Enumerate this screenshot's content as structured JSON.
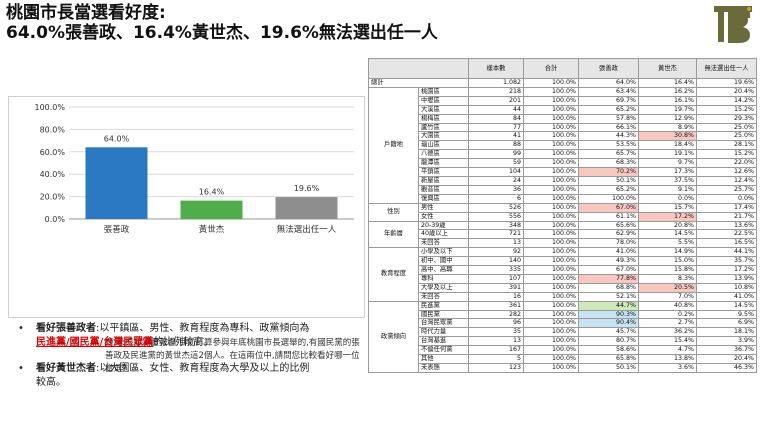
{
  "title": {
    "line1": "桃園市長當選看好度:",
    "line2": "64.0%張善政、16.4%黃世杰、19.6%無法選出任一人"
  },
  "logo": {
    "letters": "TBT",
    "color": "#6b6a3a",
    "accent": "#c9a227"
  },
  "chart_data": {
    "type": "bar",
    "categories": [
      "張善政",
      "黃世杰",
      "無法選出任一人"
    ],
    "values": [
      64.0,
      16.4,
      19.6
    ],
    "value_labels": [
      "64.0%",
      "16.4%",
      "19.6%"
    ],
    "colors": [
      "#2b78c2",
      "#4fae4a",
      "#8e8e8e"
    ],
    "ylim": [
      0,
      100
    ],
    "yticks": [
      "0.0%",
      "20.0%",
      "40.0%",
      "60.0%",
      "80.0%",
      "100.0%"
    ],
    "grid": true
  },
  "question": "題目:根據媒體報導,目前打算參與年底桃園市長選舉的,有國民黨的張善政及民進黨的黃世杰這2個人。在這兩位中,請問您比較看好哪一位當選?",
  "bullets": [
    {
      "lead": "看好張善政者",
      "text": ":以平鎮區、男性、教育程度為專科、政黨傾向為",
      "red": "民進黨/國民黨/台灣民眾黨",
      "tail": "的比例較高。"
    },
    {
      "lead": "看好黃世杰者",
      "text": ":以大園區、女性、教育程度為大學及以上的比例較高。",
      "red": "",
      "tail": ""
    }
  ],
  "table": {
    "headers": [
      "",
      "",
      "樣本數",
      "合計",
      "張善政",
      "黃世杰",
      "無法選出任一人"
    ],
    "total": {
      "label": "總計",
      "cells": [
        "1,082",
        "100.0%",
        "64.0%",
        "16.4%",
        "19.6%"
      ]
    },
    "groups": [
      {
        "name": "戶籍地",
        "rows": [
          {
            "label": "桃園區",
            "cells": [
              "218",
              "100.0%",
              "63.4%",
              "16.2%",
              "20.4%"
            ]
          },
          {
            "label": "中壢區",
            "cells": [
              "201",
              "100.0%",
              "69.7%",
              "16.1%",
              "14.2%"
            ]
          },
          {
            "label": "大溪區",
            "cells": [
              "44",
              "100.0%",
              "65.2%",
              "19.7%",
              "15.2%"
            ]
          },
          {
            "label": "楊梅區",
            "cells": [
              "84",
              "100.0%",
              "57.8%",
              "12.9%",
              "29.3%"
            ]
          },
          {
            "label": "蘆竹區",
            "cells": [
              "77",
              "100.0%",
              "66.1%",
              "8.9%",
              "25.0%"
            ]
          },
          {
            "label": "大園區",
            "cells": [
              "41",
              "100.0%",
              "44.3%",
              "30.8%",
              "25.0%"
            ],
            "hl": {
              "3": "red"
            }
          },
          {
            "label": "龜山區",
            "cells": [
              "88",
              "100.0%",
              "53.5%",
              "18.4%",
              "28.1%"
            ]
          },
          {
            "label": "八德區",
            "cells": [
              "99",
              "100.0%",
              "65.7%",
              "19.1%",
              "15.2%"
            ]
          },
          {
            "label": "龍潭區",
            "cells": [
              "59",
              "100.0%",
              "68.3%",
              "9.7%",
              "22.0%"
            ]
          },
          {
            "label": "平鎮區",
            "cells": [
              "104",
              "100.0%",
              "70.2%",
              "17.3%",
              "12.6%"
            ],
            "hl": {
              "2": "red"
            }
          },
          {
            "label": "新屋區",
            "cells": [
              "24",
              "100.0%",
              "50.1%",
              "37.5%",
              "12.4%"
            ]
          },
          {
            "label": "觀音區",
            "cells": [
              "36",
              "100.0%",
              "65.2%",
              "9.1%",
              "25.7%"
            ]
          },
          {
            "label": "復興區",
            "cells": [
              "6",
              "100.0%",
              "100.0%",
              "0.0%",
              "0.0%"
            ]
          }
        ]
      },
      {
        "name": "性別",
        "rows": [
          {
            "label": "男性",
            "cells": [
              "526",
              "100.0%",
              "67.0%",
              "15.7%",
              "17.4%"
            ],
            "hl": {
              "2": "red"
            }
          },
          {
            "label": "女性",
            "cells": [
              "556",
              "100.0%",
              "61.1%",
              "17.2%",
              "21.7%"
            ],
            "hl": {
              "3": "red"
            }
          }
        ]
      },
      {
        "name": "年齡層",
        "rows": [
          {
            "label": "20-39歲",
            "cells": [
              "348",
              "100.0%",
              "65.6%",
              "20.8%",
              "13.6%"
            ]
          },
          {
            "label": "40歲以上",
            "cells": [
              "721",
              "100.0%",
              "62.9%",
              "14.5%",
              "22.5%"
            ]
          },
          {
            "label": "未回答",
            "cells": [
              "13",
              "100.0%",
              "78.0%",
              "5.5%",
              "16.5%"
            ]
          }
        ]
      },
      {
        "name": "教育程度",
        "rows": [
          {
            "label": "小學及以下",
            "cells": [
              "92",
              "100.0%",
              "41.0%",
              "14.9%",
              "44.1%"
            ]
          },
          {
            "label": "初中、國中",
            "cells": [
              "140",
              "100.0%",
              "49.3%",
              "15.0%",
              "35.7%"
            ]
          },
          {
            "label": "高中、高職",
            "cells": [
              "335",
              "100.0%",
              "67.0%",
              "15.8%",
              "17.2%"
            ]
          },
          {
            "label": "專科",
            "cells": [
              "107",
              "100.0%",
              "77.8%",
              "8.3%",
              "13.9%"
            ],
            "hl": {
              "2": "red"
            }
          },
          {
            "label": "大學及以上",
            "cells": [
              "391",
              "100.0%",
              "68.8%",
              "20.5%",
              "10.8%"
            ],
            "hl": {
              "3": "red"
            }
          },
          {
            "label": "未回答",
            "cells": [
              "16",
              "100.0%",
              "52.1%",
              "7.0%",
              "41.0%"
            ]
          }
        ]
      },
      {
        "name": "政黨傾向",
        "rows": [
          {
            "label": "民進黨",
            "cells": [
              "361",
              "100.0%",
              "44.7%",
              "40.8%",
              "14.5%"
            ],
            "hl": {
              "2": "green"
            }
          },
          {
            "label": "國民黨",
            "cells": [
              "282",
              "100.0%",
              "90.3%",
              "0.2%",
              "9.5%"
            ],
            "hl": {
              "2": "blue"
            }
          },
          {
            "label": "台灣民眾黨",
            "cells": [
              "96",
              "100.0%",
              "90.4%",
              "2.7%",
              "6.9%"
            ],
            "hl": {
              "2": "blue"
            }
          },
          {
            "label": "時代力量",
            "cells": [
              "35",
              "100.0%",
              "45.7%",
              "36.2%",
              "18.1%"
            ]
          },
          {
            "label": "台灣基進",
            "cells": [
              "13",
              "100.0%",
              "80.7%",
              "15.4%",
              "3.9%"
            ]
          },
          {
            "label": "不偏任何黨",
            "cells": [
              "167",
              "100.0%",
              "58.6%",
              "4.7%",
              "36.7%"
            ]
          },
          {
            "label": "其他",
            "cells": [
              "5",
              "100.0%",
              "65.8%",
              "13.8%",
              "20.4%"
            ]
          },
          {
            "label": "未表態",
            "cells": [
              "123",
              "100.0%",
              "50.1%",
              "3.6%",
              "46.3%"
            ]
          }
        ]
      }
    ]
  }
}
